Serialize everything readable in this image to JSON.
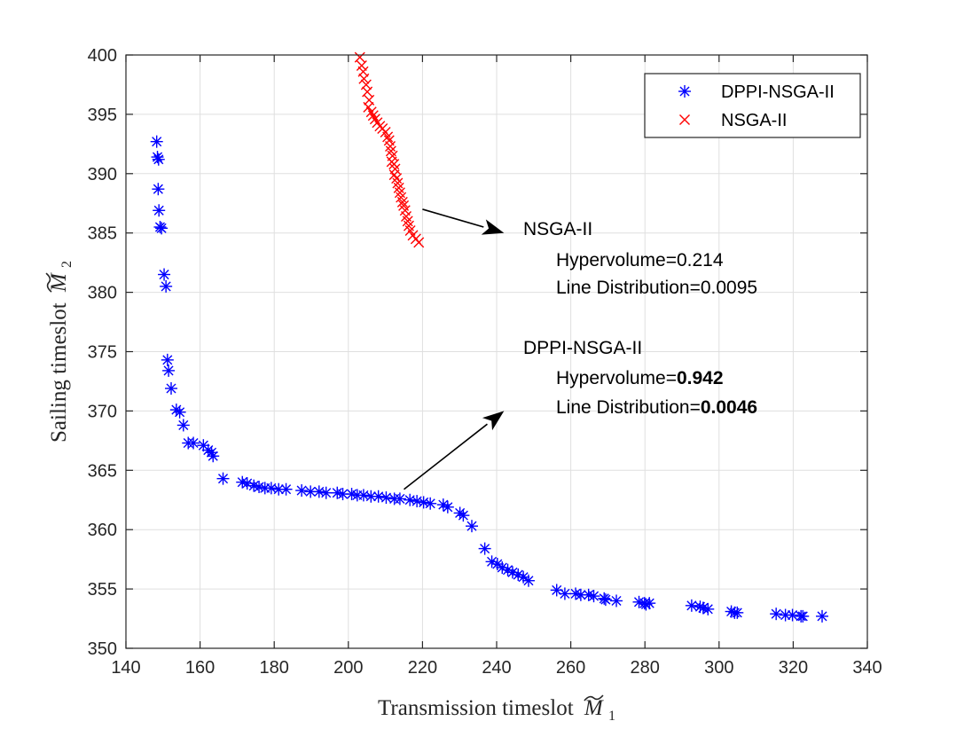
{
  "chart_data": {
    "type": "scatter",
    "xlabel": "Transmission timeslot",
    "xlabel_symbol": "M",
    "xlabel_subscript": "1",
    "ylabel": "Sailing timeslot",
    "ylabel_symbol": "M",
    "ylabel_subscript": "2",
    "xlim": [
      140,
      340
    ],
    "ylim": [
      350,
      400
    ],
    "xticks": [
      140,
      160,
      180,
      200,
      220,
      240,
      260,
      280,
      300,
      320,
      340
    ],
    "yticks": [
      350,
      355,
      360,
      365,
      370,
      375,
      380,
      385,
      390,
      395,
      400
    ],
    "grid": true,
    "legend_position": "top-right",
    "series": [
      {
        "name": "DPPI-NSGA-II",
        "marker": "asterisk",
        "color": "#0000ff",
        "points": [
          [
            148.3,
            392.7
          ],
          [
            148.5,
            391.4
          ],
          [
            148.8,
            391.2
          ],
          [
            148.7,
            388.7
          ],
          [
            148.9,
            386.9
          ],
          [
            149.2,
            385.5
          ],
          [
            149.6,
            385.4
          ],
          [
            150.3,
            381.5
          ],
          [
            150.8,
            380.5
          ],
          [
            151.2,
            374.3
          ],
          [
            151.5,
            373.4
          ],
          [
            152.2,
            371.9
          ],
          [
            153.6,
            370.1
          ],
          [
            154.5,
            369.9
          ],
          [
            155.5,
            368.8
          ],
          [
            156.8,
            367.3
          ],
          [
            158.2,
            367.3
          ],
          [
            160.9,
            367.1
          ],
          [
            162.2,
            366.7
          ],
          [
            163.1,
            366.5
          ],
          [
            163.5,
            366.2
          ],
          [
            166.2,
            364.3
          ],
          [
            171.4,
            364.0
          ],
          [
            172.7,
            363.9
          ],
          [
            174.5,
            363.7
          ],
          [
            175.9,
            363.6
          ],
          [
            177.5,
            363.5
          ],
          [
            179.2,
            363.5
          ],
          [
            181.2,
            363.4
          ],
          [
            183.2,
            363.4
          ],
          [
            187.4,
            363.3
          ],
          [
            189.8,
            363.2
          ],
          [
            192.1,
            363.2
          ],
          [
            194.0,
            363.1
          ],
          [
            197.0,
            363.1
          ],
          [
            198.5,
            363.0
          ],
          [
            200.9,
            363.0
          ],
          [
            202.4,
            362.9
          ],
          [
            204.1,
            362.9
          ],
          [
            206.1,
            362.8
          ],
          [
            208.1,
            362.8
          ],
          [
            210.2,
            362.7
          ],
          [
            212.4,
            362.6
          ],
          [
            213.9,
            362.6
          ],
          [
            216.6,
            362.5
          ],
          [
            218.5,
            362.4
          ],
          [
            220.3,
            362.3
          ],
          [
            222.1,
            362.2
          ],
          [
            225.6,
            362.1
          ],
          [
            226.8,
            361.9
          ],
          [
            230.1,
            361.4
          ],
          [
            231.0,
            361.2
          ],
          [
            233.3,
            360.3
          ],
          [
            236.8,
            358.4
          ],
          [
            238.7,
            357.3
          ],
          [
            240.2,
            357.1
          ],
          [
            241.5,
            356.8
          ],
          [
            243.0,
            356.6
          ],
          [
            244.3,
            356.4
          ],
          [
            245.8,
            356.2
          ],
          [
            247.2,
            356.0
          ],
          [
            248.6,
            355.7
          ],
          [
            256.2,
            354.9
          ],
          [
            258.4,
            354.6
          ],
          [
            261.3,
            354.6
          ],
          [
            262.7,
            354.5
          ],
          [
            264.8,
            354.5
          ],
          [
            266.2,
            354.4
          ],
          [
            269.0,
            354.2
          ],
          [
            269.4,
            354.1
          ],
          [
            272.3,
            354.0
          ],
          [
            278.4,
            353.9
          ],
          [
            279.9,
            353.8
          ],
          [
            280.3,
            353.7
          ],
          [
            281.2,
            353.8
          ],
          [
            292.6,
            353.6
          ],
          [
            294.9,
            353.5
          ],
          [
            295.7,
            353.4
          ],
          [
            297.0,
            353.3
          ],
          [
            303.3,
            353.1
          ],
          [
            304.2,
            353.0
          ],
          [
            304.9,
            353.0
          ],
          [
            315.4,
            352.9
          ],
          [
            317.9,
            352.8
          ],
          [
            319.8,
            352.8
          ],
          [
            322.1,
            352.7
          ],
          [
            322.6,
            352.7
          ],
          [
            327.8,
            352.7
          ]
        ]
      },
      {
        "name": "NSGA-II",
        "marker": "x",
        "color": "#ff0000",
        "points": [
          [
            203.1,
            399.8
          ],
          [
            203.6,
            399.1
          ],
          [
            204.0,
            398.6
          ],
          [
            204.2,
            398.0
          ],
          [
            204.8,
            397.5
          ],
          [
            205.1,
            396.9
          ],
          [
            205.6,
            396.2
          ],
          [
            205.4,
            395.6
          ],
          [
            206.2,
            395.2
          ],
          [
            206.7,
            394.9
          ],
          [
            207.2,
            394.6
          ],
          [
            207.8,
            394.3
          ],
          [
            208.5,
            394.0
          ],
          [
            209.2,
            393.8
          ],
          [
            210.0,
            393.5
          ],
          [
            210.6,
            393.1
          ],
          [
            211.0,
            392.8
          ],
          [
            211.3,
            392.3
          ],
          [
            211.5,
            391.9
          ],
          [
            211.9,
            391.5
          ],
          [
            211.7,
            391.0
          ],
          [
            212.3,
            390.8
          ],
          [
            212.6,
            390.4
          ],
          [
            212.4,
            389.9
          ],
          [
            213.0,
            389.6
          ],
          [
            213.3,
            389.2
          ],
          [
            213.6,
            388.8
          ],
          [
            213.9,
            388.4
          ],
          [
            214.2,
            388.0
          ],
          [
            214.6,
            387.6
          ],
          [
            214.9,
            387.3
          ],
          [
            215.3,
            386.9
          ],
          [
            215.6,
            386.4
          ],
          [
            216.0,
            386.0
          ],
          [
            216.3,
            385.6
          ],
          [
            216.7,
            385.2
          ],
          [
            217.4,
            384.8
          ],
          [
            218.2,
            384.5
          ],
          [
            219.0,
            384.2
          ]
        ]
      }
    ],
    "annotations": [
      {
        "title": "NSGA-II",
        "hv_label": "Hypervolume=",
        "hv_value": "0.214",
        "ld_label": "Line Distribution=",
        "ld_value": "0.0095",
        "bold_values": false,
        "arrow_from": [
          220,
          387
        ],
        "arrow_to": [
          242,
          385
        ]
      },
      {
        "title": "DPPI-NSGA-II",
        "hv_label": "Hypervolume=",
        "hv_value": "0.942",
        "ld_label": "Line Distribution=",
        "ld_value": "0.0046",
        "bold_values": true,
        "arrow_from": [
          215,
          363.4
        ],
        "arrow_to": [
          242,
          370
        ]
      }
    ]
  }
}
